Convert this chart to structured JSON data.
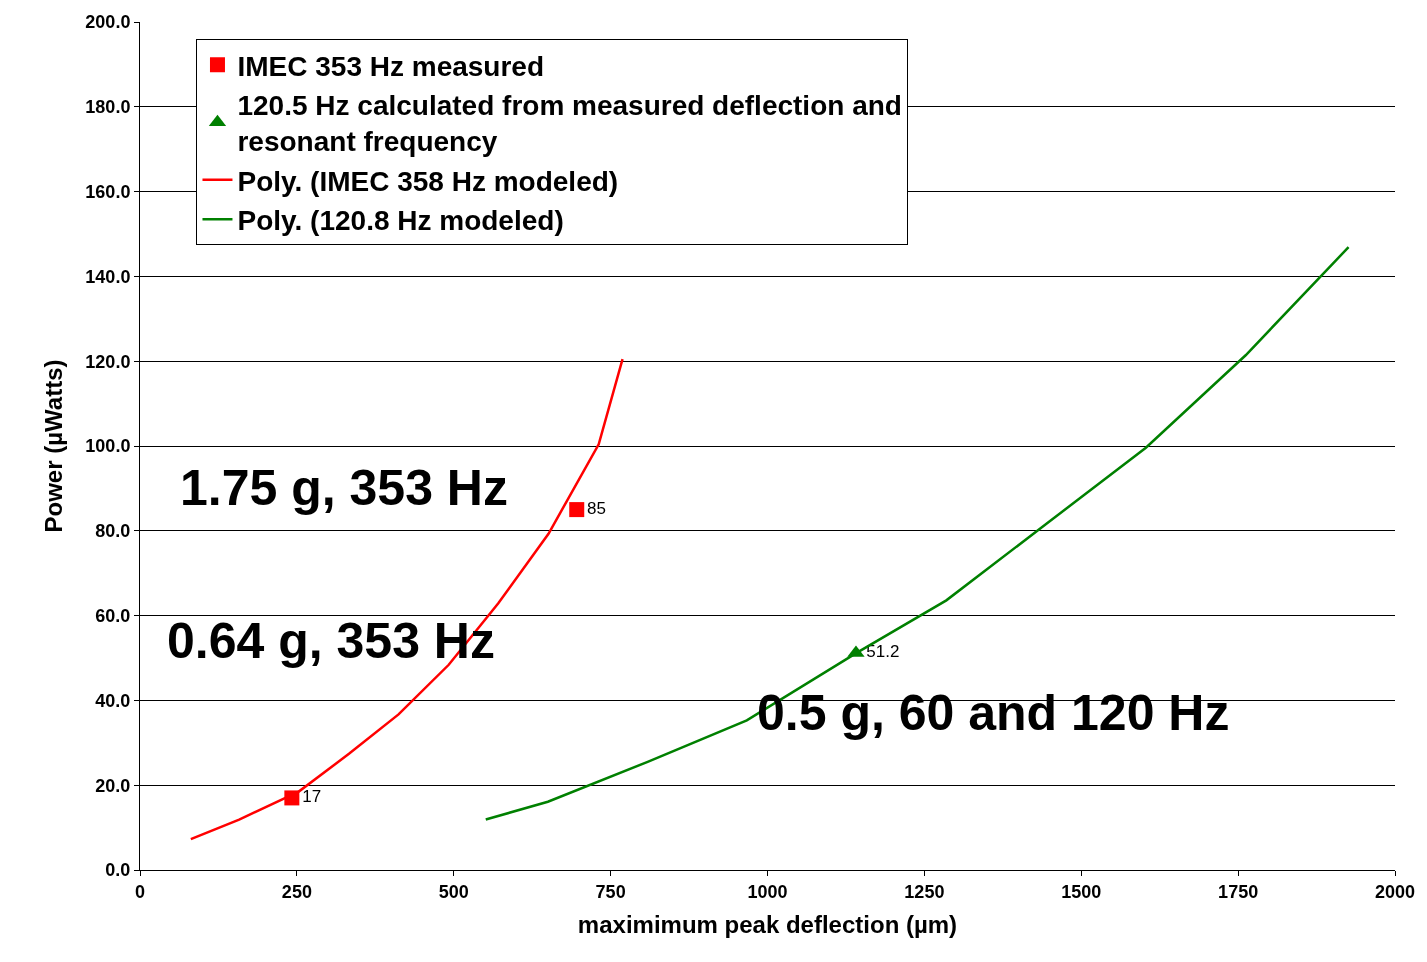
{
  "chart_data": {
    "type": "scatter",
    "xlabel": "maximimum peak deflection (µm)",
    "ylabel": "Power (µWatts)",
    "xlim": [
      0,
      2000
    ],
    "xticks": [
      0,
      250,
      500,
      750,
      1000,
      1250,
      1500,
      1750,
      2000
    ],
    "ylim": [
      0,
      200
    ],
    "yticks": [
      {
        "value": 0,
        "label": "0.0"
      },
      {
        "value": 20,
        "label": "20.0"
      },
      {
        "value": 40,
        "label": "40.0"
      },
      {
        "value": 60,
        "label": "60.0"
      },
      {
        "value": 80,
        "label": "80.0"
      },
      {
        "value": 100,
        "label": "100.0"
      },
      {
        "value": 120,
        "label": "120.0"
      },
      {
        "value": 140,
        "label": "140.0"
      },
      {
        "value": 160,
        "label": "160.0"
      },
      {
        "value": 180,
        "label": "180.0"
      },
      {
        "value": 200,
        "label": "200.0"
      }
    ],
    "grid": "y",
    "legend": "top left",
    "series": [
      {
        "name": "IMEC 353 Hz measured",
        "marker": "square",
        "color": "#ff0000",
        "x": [
          242,
          696
        ],
        "values": [
          17,
          85
        ],
        "value_labels": [
          "17",
          "85"
        ]
      },
      {
        "name": "120.5 Hz calculated from measured deflection and resonant frequency",
        "marker": "triangle",
        "color": "#008000",
        "x": [
          1141
        ],
        "values": [
          51.2
        ],
        "value_labels": [
          "51.2"
        ]
      },
      {
        "name": "Poly. (IMEC 358 Hz modeled)",
        "type": "line",
        "marker": "none",
        "color": "#ff0000",
        "x": [
          81,
          158,
          253,
          333,
          412,
          492,
          571,
          651,
          731,
          769
        ],
        "values": [
          7.3,
          11.9,
          18.5,
          27.4,
          36.7,
          48.4,
          62.9,
          79.3,
          100.4,
          120.5
        ]
      },
      {
        "name": "Poly. (120.8 Hz modeled)",
        "type": "line",
        "marker": "none",
        "color": "#008000",
        "x": [
          551,
          650,
          809,
          967,
          1142,
          1285,
          1444,
          1603,
          1762,
          1926
        ],
        "values": [
          11.9,
          16.1,
          25.5,
          35.3,
          51.2,
          63.6,
          81.6,
          99.6,
          121.4,
          146.9
        ]
      }
    ],
    "annotations": [
      "1.75 g, 353 Hz",
      "0.64 g, 353 Hz",
      "0.5 g, 60 and 120 Hz"
    ]
  }
}
